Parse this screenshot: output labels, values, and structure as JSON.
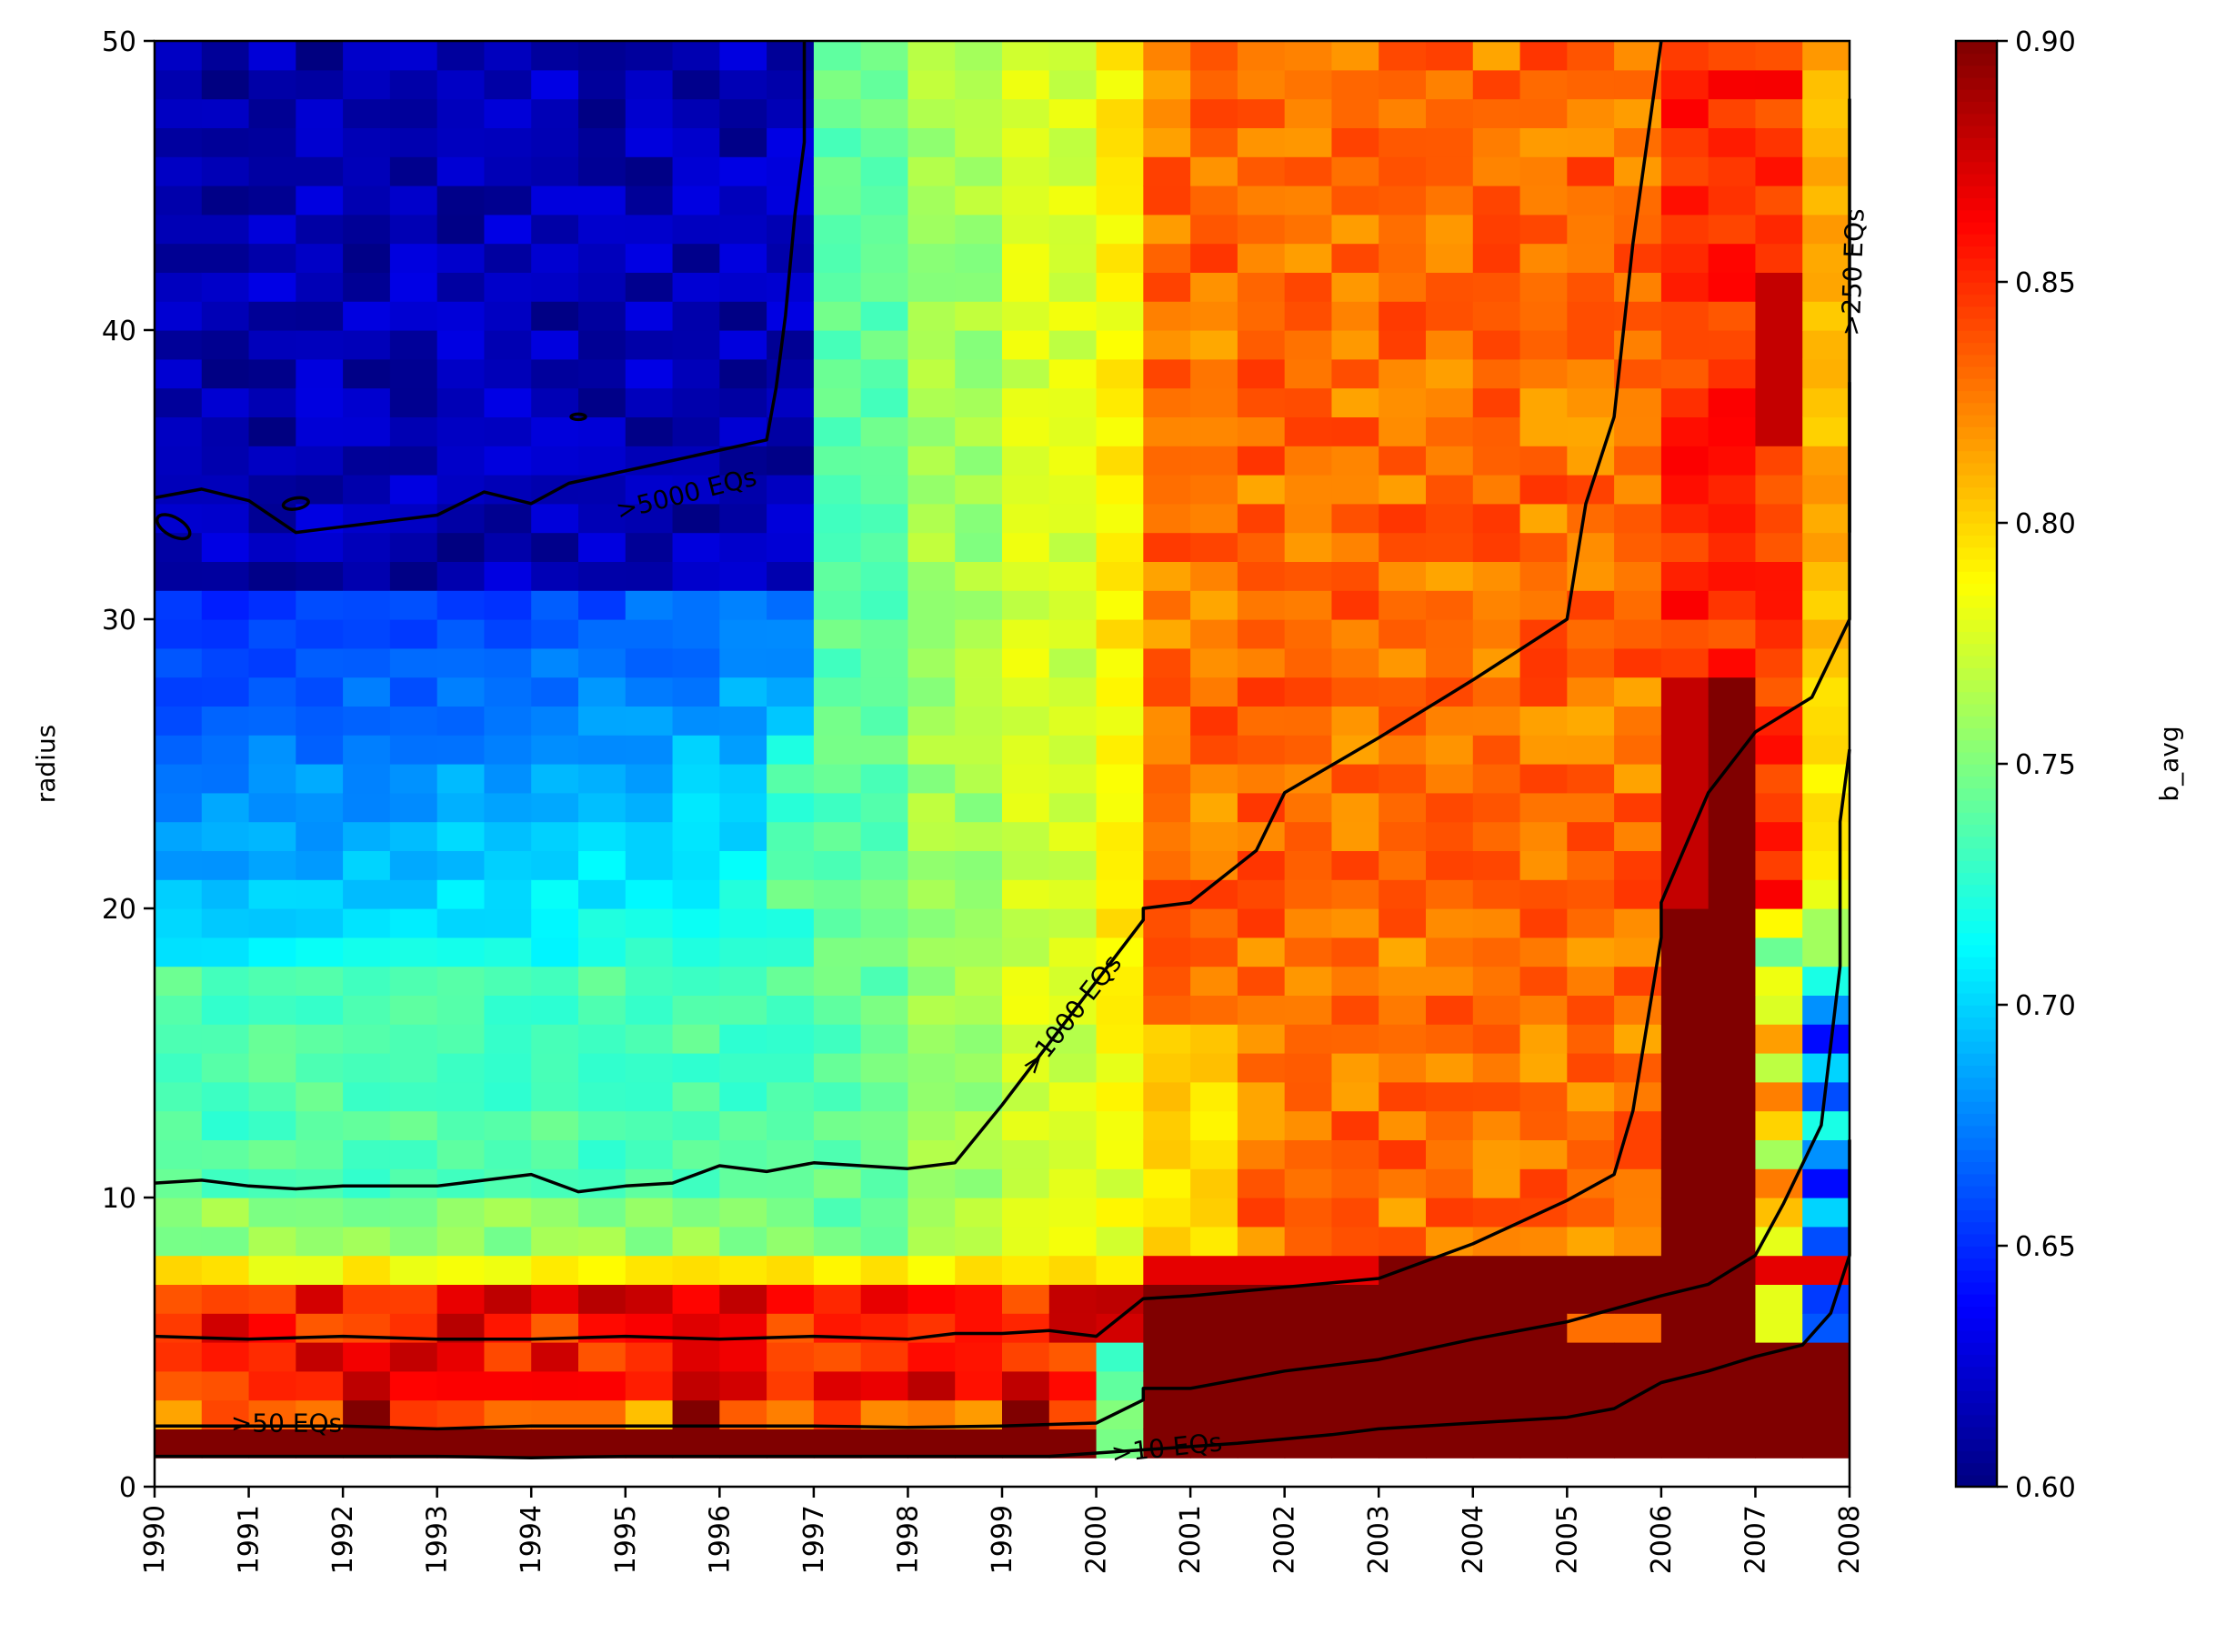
{
  "chart_data": {
    "type": "heatmap",
    "title": "",
    "xlabel": "",
    "ylabel": "radius",
    "colorbar_label": "b_avg",
    "colormap": "jet",
    "color_range": [
      0.6,
      0.9
    ],
    "xlim": [
      1990,
      2008
    ],
    "ylim": [
      0,
      50
    ],
    "x_ticks": [
      "1990",
      "1991",
      "1992",
      "1993",
      "1994",
      "1995",
      "1996",
      "1997",
      "1998",
      "1999",
      "2000",
      "2001",
      "2002",
      "2003",
      "2004",
      "2005",
      "2006",
      "2007",
      "2008"
    ],
    "y_ticks": [
      "0",
      "10",
      "20",
      "30",
      "40",
      "50"
    ],
    "colorbar_ticks": [
      "0.60",
      "0.65",
      "0.70",
      "0.75",
      "0.80",
      "0.85",
      "0.90"
    ],
    "grid": {
      "x_step": 0.5,
      "radius_from": 1,
      "radius_to": 50,
      "radius_step": 1,
      "note_regions": [
        {
          "x": [
            1990,
            1997
          ],
          "radius": [
            31,
            50
          ],
          "value": 0.615
        },
        {
          "x": [
            1990,
            1997
          ],
          "radius": [
            18,
            30
          ],
          "value": 0.665
        },
        {
          "x": [
            1990,
            1997
          ],
          "radius": [
            8,
            18
          ],
          "value": 0.73
        },
        {
          "x": [
            1997,
            2000.5
          ],
          "radius": [
            8,
            50
          ],
          "value": 0.77
        },
        {
          "x": [
            2000.5,
            2006
          ],
          "radius": [
            8,
            50
          ],
          "value": 0.83
        },
        {
          "x": [
            2006,
            2007
          ],
          "radius": [
            8,
            50
          ],
          "value": 0.86
        },
        {
          "x": [
            2007,
            2008
          ],
          "radius": [
            8,
            50
          ],
          "value": 0.82
        },
        {
          "x": [
            1990,
            2000.5
          ],
          "radius": [
            1,
            7
          ],
          "value": 0.865
        },
        {
          "x": [
            2000.5,
            2008
          ],
          "radius": [
            1,
            7
          ],
          "value": 0.9
        }
      ]
    },
    "contours": [
      {
        "label": ">10 EQs",
        "points": [
          [
            1990,
            1.05
          ],
          [
            1991,
            1.05
          ],
          [
            1992,
            1.05
          ],
          [
            1993,
            1.05
          ],
          [
            1994,
            1.0
          ],
          [
            1995,
            1.05
          ],
          [
            1996,
            1.05
          ],
          [
            1997,
            1.05
          ],
          [
            1998,
            1.05
          ],
          [
            1999,
            1.05
          ],
          [
            1999.5,
            1.05
          ],
          [
            2001.5,
            1.5
          ],
          [
            2002.5,
            1.8
          ],
          [
            2003,
            2.0
          ],
          [
            2004,
            2.2
          ],
          [
            2005,
            2.4
          ],
          [
            2005.5,
            2.7
          ],
          [
            2006,
            3.6
          ],
          [
            2006.5,
            4.0
          ],
          [
            2007,
            4.5
          ],
          [
            2007.5,
            4.9
          ],
          [
            2007.8,
            6.0
          ],
          [
            2008,
            8.0
          ],
          [
            2008,
            12.0
          ]
        ]
      },
      {
        "label": ">50 EQs",
        "points": [
          [
            1990,
            2.1
          ],
          [
            1990.5,
            2.1
          ],
          [
            1991,
            2.1
          ],
          [
            1992,
            2.1
          ],
          [
            1993,
            2.0
          ],
          [
            1994,
            2.1
          ],
          [
            1995,
            2.1
          ],
          [
            1996,
            2.1
          ],
          [
            1997,
            2.1
          ],
          [
            1998,
            2.05
          ],
          [
            1999,
            2.1
          ],
          [
            2000,
            2.2
          ],
          [
            2000.5,
            3.0
          ],
          [
            2000.5,
            3.4
          ],
          [
            2001,
            3.4
          ],
          [
            2002,
            4.0
          ],
          [
            2003,
            4.4
          ],
          [
            2004,
            5.1
          ],
          [
            2005,
            5.7
          ],
          [
            2006,
            6.6
          ],
          [
            2006.5,
            7.0
          ],
          [
            2007,
            8.0
          ],
          [
            2007.3,
            9.8
          ],
          [
            2007.7,
            12.5
          ],
          [
            2007.9,
            18.0
          ],
          [
            2007.9,
            23.0
          ],
          [
            2008,
            25.5
          ]
        ]
      },
      {
        "label": "",
        "points": [
          [
            1990,
            5.2
          ],
          [
            1991,
            5.1
          ],
          [
            1992,
            5.2
          ],
          [
            1993,
            5.1
          ],
          [
            1994,
            5.1
          ],
          [
            1995,
            5.2
          ],
          [
            1996,
            5.1
          ],
          [
            1997,
            5.2
          ],
          [
            1998,
            5.1
          ],
          [
            1998.5,
            5.3
          ],
          [
            1999,
            5.3
          ],
          [
            1999.5,
            5.4
          ],
          [
            2000,
            5.2
          ],
          [
            2000.5,
            6.5
          ],
          [
            2001,
            6.6
          ],
          [
            2002,
            6.9
          ],
          [
            2003,
            7.2
          ],
          [
            2004,
            8.4
          ],
          [
            2005,
            9.9
          ],
          [
            2005.5,
            10.8
          ],
          [
            2005.7,
            13.0
          ],
          [
            2006,
            19.0
          ],
          [
            2006,
            20.2
          ],
          [
            2006.5,
            24.0
          ],
          [
            2007,
            26.1
          ],
          [
            2007.6,
            27.3
          ],
          [
            2008,
            30.0
          ],
          [
            2008,
            40.0
          ],
          [
            2008,
            48.0
          ]
        ]
      },
      {
        "label": ">250 EQs",
        "points": [
          [
            2008,
            38.2
          ],
          [
            2008,
            33.0
          ]
        ]
      },
      {
        "label": ">1000 EQs",
        "points": [
          [
            1990,
            10.5
          ],
          [
            1990.5,
            10.6
          ],
          [
            1991,
            10.4
          ],
          [
            1991.5,
            10.3
          ],
          [
            1992,
            10.4
          ],
          [
            1993,
            10.4
          ],
          [
            1994,
            10.8
          ],
          [
            1994.5,
            10.2
          ],
          [
            1995,
            10.4
          ],
          [
            1995.5,
            10.5
          ],
          [
            1996,
            11.1
          ],
          [
            1996.5,
            10.9
          ],
          [
            1997,
            11.2
          ],
          [
            1998,
            11.0
          ],
          [
            1998.5,
            11.2
          ],
          [
            1999,
            13.2
          ],
          [
            2000.5,
            19.6
          ],
          [
            2000.5,
            20.0
          ],
          [
            2001,
            20.2
          ],
          [
            2001.7,
            22.0
          ],
          [
            2002,
            24.0
          ],
          [
            2003,
            25.9
          ],
          [
            2004,
            27.9
          ],
          [
            2005,
            30.0
          ],
          [
            2005.2,
            34.0
          ],
          [
            2005.5,
            37.0
          ],
          [
            2005.7,
            43.0
          ],
          [
            2006,
            50.0
          ]
        ]
      },
      {
        "label": ">5000 EQs",
        "points": [
          [
            1990,
            34.2
          ],
          [
            1990.5,
            34.5
          ],
          [
            1991,
            34.1
          ],
          [
            1991.5,
            33.0
          ],
          [
            1992,
            33.2
          ],
          [
            1993,
            33.6
          ],
          [
            1993.5,
            34.4
          ],
          [
            1994,
            34.0
          ],
          [
            1994.4,
            34.7
          ],
          [
            1996.5,
            36.2
          ],
          [
            1996.6,
            38.0
          ],
          [
            1996.7,
            40.5
          ],
          [
            1996.8,
            44.0
          ],
          [
            1996.9,
            46.5
          ],
          [
            1996.9,
            50.0
          ]
        ]
      }
    ],
    "contour_labels": [
      ">5000 EQs",
      ">1000 EQs",
      ">50 EQs",
      ">10 EQs",
      ">250 EQs"
    ]
  }
}
